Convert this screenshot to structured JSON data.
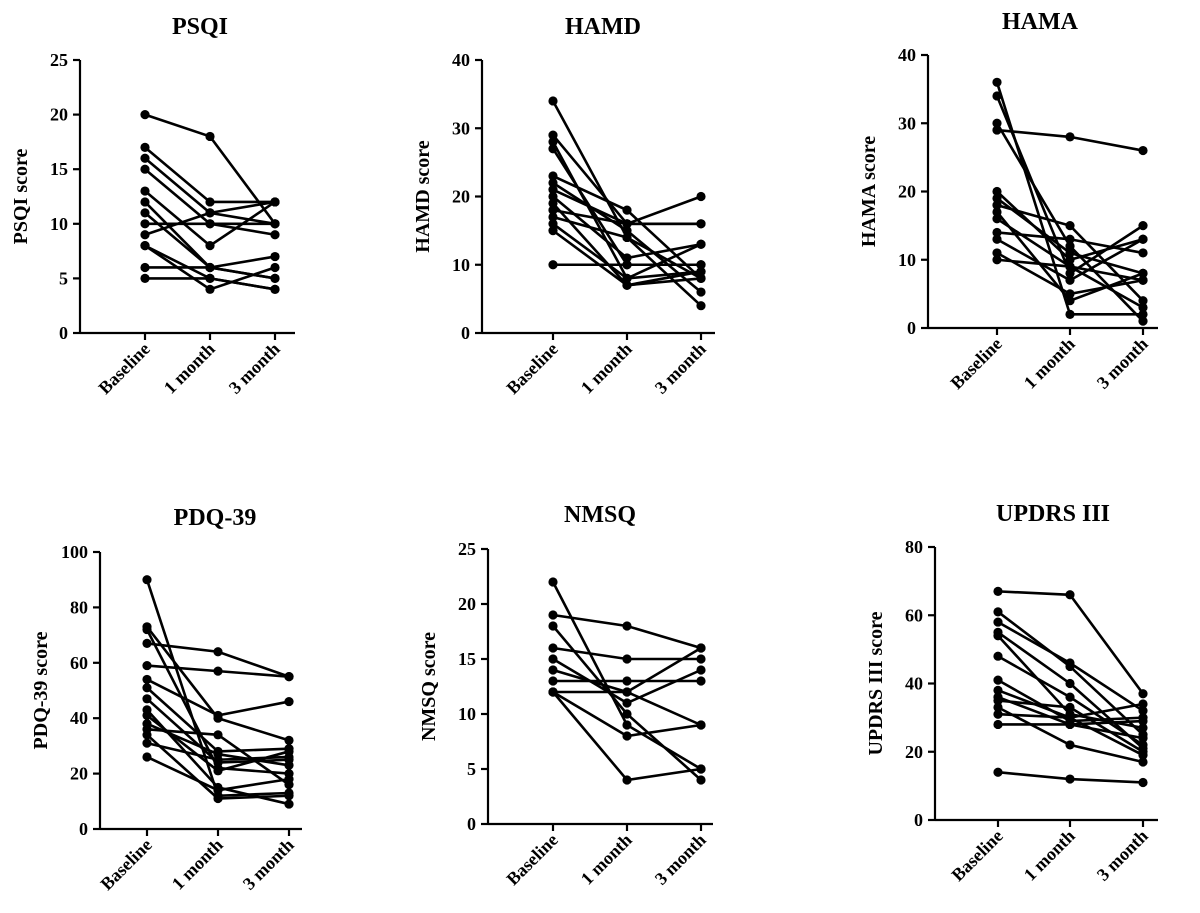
{
  "chart_data": [
    {
      "type": "line",
      "title": "PSQI",
      "ylabel": "PSQI score",
      "categories": [
        "Baseline",
        "1 month",
        "3 month"
      ],
      "ylim": [
        0,
        25
      ],
      "yticks": [
        0,
        5,
        10,
        15,
        20,
        25
      ],
      "grid": false,
      "series": [
        {
          "values": [
            20,
            18,
            10
          ]
        },
        {
          "values": [
            17,
            12,
            12
          ]
        },
        {
          "values": [
            16,
            11,
            10
          ]
        },
        {
          "values": [
            15,
            10,
            9
          ]
        },
        {
          "values": [
            13,
            8,
            12
          ]
        },
        {
          "values": [
            12,
            6,
            7
          ]
        },
        {
          "values": [
            11,
            6,
            5
          ]
        },
        {
          "values": [
            10,
            10,
            10
          ]
        },
        {
          "values": [
            9,
            11,
            12
          ]
        },
        {
          "values": [
            8,
            5,
            4
          ]
        },
        {
          "values": [
            8,
            4,
            6
          ]
        },
        {
          "values": [
            6,
            6,
            5
          ]
        },
        {
          "values": [
            5,
            5,
            4
          ]
        }
      ]
    },
    {
      "type": "line",
      "title": "HAMD",
      "ylabel": "HAMD score",
      "categories": [
        "Baseline",
        "1 month",
        "3 month"
      ],
      "ylim": [
        0,
        40
      ],
      "yticks": [
        0,
        10,
        20,
        30,
        40
      ],
      "grid": false,
      "series": [
        {
          "values": [
            34,
            14,
            4
          ]
        },
        {
          "values": [
            29,
            16,
            16
          ]
        },
        {
          "values": [
            28,
            8,
            9
          ]
        },
        {
          "values": [
            27,
            10,
            10
          ]
        },
        {
          "values": [
            23,
            18,
            8
          ]
        },
        {
          "values": [
            22,
            15,
            6
          ]
        },
        {
          "values": [
            21,
            16,
            16
          ]
        },
        {
          "values": [
            20,
            11,
            13
          ]
        },
        {
          "values": [
            19,
            7,
            8
          ]
        },
        {
          "values": [
            18,
            16,
            20
          ]
        },
        {
          "values": [
            17,
            14,
            8
          ]
        },
        {
          "values": [
            16,
            8,
            13
          ]
        },
        {
          "values": [
            15,
            7,
            9
          ]
        },
        {
          "values": [
            10,
            10,
            10
          ]
        }
      ]
    },
    {
      "type": "line",
      "title": "HAMA",
      "ylabel": "HAMA score",
      "categories": [
        "Baseline",
        "1 month",
        "3 month"
      ],
      "ylim": [
        0,
        40
      ],
      "yticks": [
        0,
        10,
        20,
        30,
        40
      ],
      "grid": false,
      "series": [
        {
          "values": [
            36,
            2,
            2
          ]
        },
        {
          "values": [
            34,
            8,
            15
          ]
        },
        {
          "values": [
            30,
            12,
            1
          ]
        },
        {
          "values": [
            29,
            28,
            26
          ]
        },
        {
          "values": [
            20,
            10,
            13
          ]
        },
        {
          "values": [
            19,
            11,
            8
          ]
        },
        {
          "values": [
            18,
            15,
            4
          ]
        },
        {
          "values": [
            17,
            4,
            8
          ]
        },
        {
          "values": [
            16,
            9,
            7
          ]
        },
        {
          "values": [
            14,
            13,
            11
          ]
        },
        {
          "values": [
            13,
            7,
            13
          ]
        },
        {
          "values": [
            11,
            5,
            7
          ]
        },
        {
          "values": [
            10,
            9,
            3
          ]
        }
      ]
    },
    {
      "type": "line",
      "title": "PDQ-39",
      "ylabel": "PDQ-39 score",
      "categories": [
        "Baseline",
        "1 month",
        "3 month"
      ],
      "ylim": [
        0,
        100
      ],
      "yticks": [
        0,
        20,
        40,
        60,
        80,
        100
      ],
      "grid": false,
      "series": [
        {
          "values": [
            90,
            12,
            13
          ]
        },
        {
          "values": [
            73,
            40,
            32
          ]
        },
        {
          "values": [
            72,
            22,
            20
          ]
        },
        {
          "values": [
            67,
            64,
            55
          ]
        },
        {
          "values": [
            59,
            57,
            55
          ]
        },
        {
          "values": [
            54,
            41,
            46
          ]
        },
        {
          "values": [
            51,
            28,
            29
          ]
        },
        {
          "values": [
            47,
            24,
            25
          ]
        },
        {
          "values": [
            43,
            15,
            9
          ]
        },
        {
          "values": [
            41,
            21,
            28
          ]
        },
        {
          "values": [
            38,
            27,
            23
          ]
        },
        {
          "values": [
            36,
            34,
            16
          ]
        },
        {
          "values": [
            34,
            11,
            12
          ]
        },
        {
          "values": [
            31,
            25,
            26
          ]
        },
        {
          "values": [
            26,
            14,
            18
          ]
        }
      ]
    },
    {
      "type": "line",
      "title": "NMSQ",
      "ylabel": "NMSQ score",
      "categories": [
        "Baseline",
        "1 month",
        "3 month"
      ],
      "ylim": [
        0,
        25
      ],
      "yticks": [
        0,
        5,
        10,
        15,
        20,
        25
      ],
      "grid": false,
      "series": [
        {
          "values": [
            22,
            9,
            5
          ]
        },
        {
          "values": [
            19,
            18,
            16
          ]
        },
        {
          "values": [
            18,
            10,
            4
          ]
        },
        {
          "values": [
            16,
            15,
            15
          ]
        },
        {
          "values": [
            15,
            11,
            14
          ]
        },
        {
          "values": [
            14,
            12,
            9
          ]
        },
        {
          "values": [
            13,
            13,
            13
          ]
        },
        {
          "values": [
            12,
            4,
            5
          ]
        },
        {
          "values": [
            12,
            8,
            9
          ]
        },
        {
          "values": [
            12,
            12,
            16
          ]
        }
      ]
    },
    {
      "type": "line",
      "title": "UPDRS III",
      "ylabel": "UPDRS III score",
      "categories": [
        "Baseline",
        "1 month",
        "3 month"
      ],
      "ylim": [
        0,
        80
      ],
      "yticks": [
        0,
        20,
        40,
        60,
        80
      ],
      "grid": false,
      "series": [
        {
          "values": [
            67,
            66,
            37
          ]
        },
        {
          "values": [
            61,
            45,
            25
          ]
        },
        {
          "values": [
            58,
            46,
            32
          ]
        },
        {
          "values": [
            55,
            40,
            21
          ]
        },
        {
          "values": [
            54,
            31,
            27
          ]
        },
        {
          "values": [
            48,
            36,
            22
          ]
        },
        {
          "values": [
            41,
            29,
            30
          ]
        },
        {
          "values": [
            38,
            30,
            34
          ]
        },
        {
          "values": [
            36,
            28,
            29
          ]
        },
        {
          "values": [
            35,
            33,
            20
          ]
        },
        {
          "values": [
            33,
            22,
            17
          ]
        },
        {
          "values": [
            31,
            30,
            19
          ]
        },
        {
          "values": [
            28,
            28,
            24
          ]
        },
        {
          "values": [
            14,
            12,
            11
          ]
        }
      ]
    }
  ]
}
